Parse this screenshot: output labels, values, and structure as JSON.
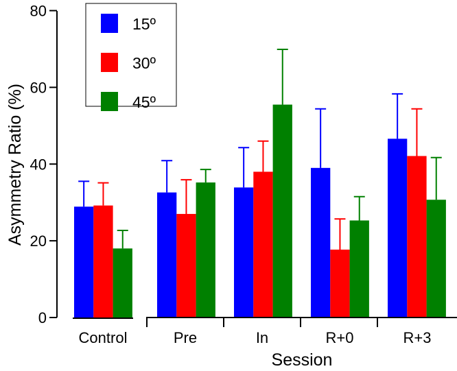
{
  "chart_data": {
    "type": "bar",
    "title": "",
    "xlabel": "Session",
    "ylabel": "Asymmetry Ratio (%)",
    "ylim": [
      0,
      80
    ],
    "yticks": [
      "0",
      "20",
      "40",
      "60",
      "80"
    ],
    "categories": [
      "Control",
      "Pre",
      "In",
      "R+0",
      "R+3"
    ],
    "series": [
      {
        "name": "15º",
        "color": "#0000ff",
        "values": [
          28.9,
          32.6,
          33.9,
          39.0,
          46.6
        ],
        "error_upper": [
          35.5,
          40.9,
          44.3,
          54.4,
          58.3
        ]
      },
      {
        "name": "30º",
        "color": "#ff0000",
        "values": [
          29.2,
          27.0,
          38.0,
          17.7,
          42.1
        ],
        "error_upper": [
          35.1,
          35.9,
          46.0,
          25.7,
          54.4
        ]
      },
      {
        "name": "45º",
        "color": "#008000",
        "values": [
          18.0,
          35.2,
          55.5,
          25.3,
          30.7
        ],
        "error_upper": [
          22.7,
          38.6,
          69.9,
          31.5,
          41.7
        ]
      }
    ],
    "grid": false,
    "legend_position": "top-left"
  }
}
